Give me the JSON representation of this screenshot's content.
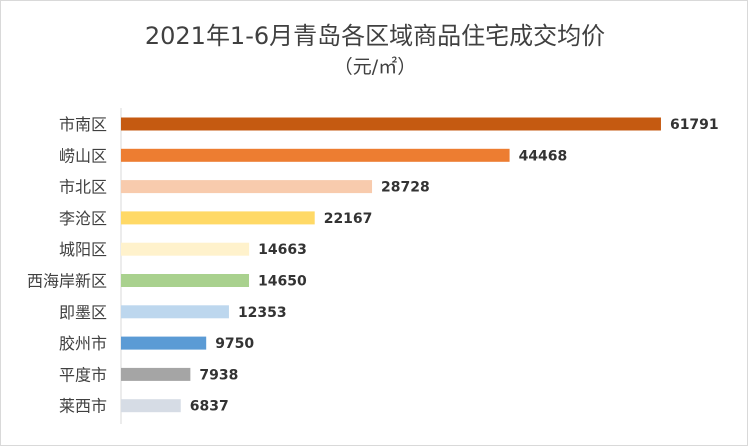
{
  "chart_data": {
    "type": "bar",
    "orientation": "horizontal",
    "title": "2021年1-6月青岛各区域商品住宅成交均价",
    "subtitle": "（元/㎡）",
    "categories": [
      "市南区",
      "崂山区",
      "市北区",
      "李沧区",
      "城阳区",
      "西海岸新区",
      "即墨区",
      "胶州市",
      "平度市",
      "莱西市"
    ],
    "values": [
      61791,
      44468,
      28728,
      22167,
      14663,
      14650,
      12353,
      9750,
      7938,
      6837
    ],
    "value_labels": [
      "61791",
      "44468",
      "28728",
      "22167",
      "14663",
      "14650",
      "12353",
      "9750",
      "7938",
      "6837"
    ],
    "colors": [
      "#c55a11",
      "#ed7d31",
      "#f8cbad",
      "#ffd966",
      "#fff2cc",
      "#a9d18e",
      "#bdd7ee",
      "#5b9bd5",
      "#a5a5a5",
      "#d6dce5"
    ],
    "xlim": [
      0,
      65000
    ],
    "grid": false,
    "legend": "none"
  }
}
